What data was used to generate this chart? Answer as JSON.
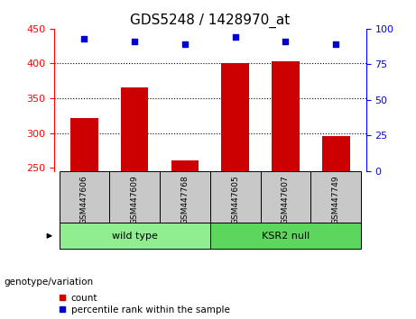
{
  "title": "GDS5248 / 1428970_at",
  "samples": [
    "GSM447606",
    "GSM447609",
    "GSM447768",
    "GSM447605",
    "GSM447607",
    "GSM447749"
  ],
  "group_labels": [
    "wild type",
    "KSR2 null"
  ],
  "counts": [
    322,
    365,
    260,
    400,
    403,
    295
  ],
  "percentiles": [
    93,
    91,
    89,
    94,
    91,
    89
  ],
  "ylim_left": [
    245,
    450
  ],
  "ylim_right": [
    0,
    100
  ],
  "yticks_left": [
    250,
    300,
    350,
    400,
    450
  ],
  "yticks_right": [
    0,
    25,
    50,
    75,
    100
  ],
  "bar_color": "#cc0000",
  "dot_color": "#0000cc",
  "group_bg_color": "#c8c8c8",
  "wildtype_color": "#90ee90",
  "ksrnull_color": "#5cd65c",
  "title_fontsize": 11,
  "tick_fontsize": 8,
  "legend_label_count": "count",
  "legend_label_pct": "percentile rank within the sample",
  "genotype_label": "genotype/variation"
}
